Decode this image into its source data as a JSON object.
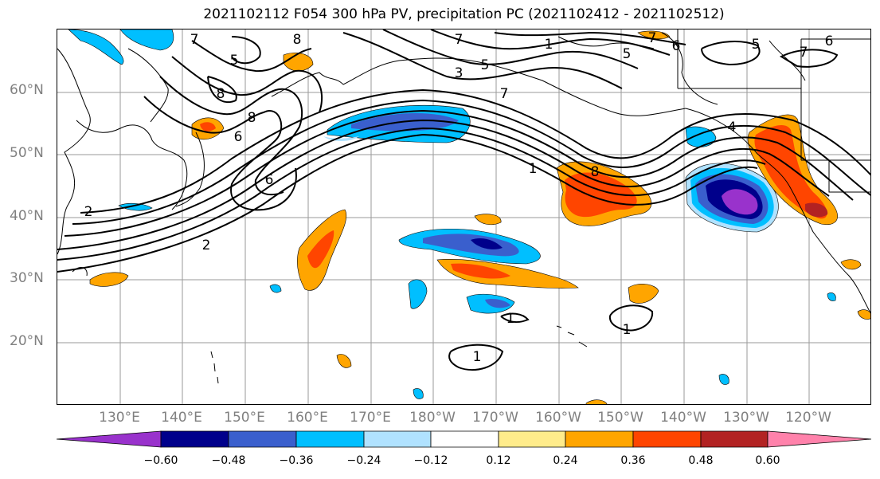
{
  "title": "2021102112 F054 300 hPa PV, precipitation PC (2021102412 - 2021102512)",
  "lat_labels": [
    "60°N",
    "50°N",
    "40°N",
    "30°N",
    "20°N"
  ],
  "lon_labels": [
    "130°E",
    "140°E",
    "150°E",
    "160°E",
    "170°E",
    "180°W",
    "170°W",
    "160°W",
    "150°W",
    "140°W",
    "130°W",
    "120°W"
  ],
  "contour_labels": [
    "7",
    "8",
    "5",
    "8",
    "8",
    "6",
    "6",
    "2",
    "2",
    "7",
    "3",
    "5",
    "7",
    "6",
    "5",
    "7",
    "1",
    "8",
    "1",
    "1",
    "1",
    "1",
    "4",
    "7",
    "5",
    "6"
  ],
  "colorbar": {
    "ticks": [
      "−0.60",
      "−0.48",
      "−0.36",
      "−0.24",
      "−0.12",
      "0.12",
      "0.24",
      "0.36",
      "0.48",
      "0.60"
    ],
    "colors": [
      "#9932CC",
      "#00008B",
      "#3A5FCD",
      "#00BFFF",
      "#B0E2FF",
      "#FFFFFF",
      "#FFEC8B",
      "#FFA500",
      "#FF4500",
      "#B22222",
      "#FF82AB"
    ]
  }
}
